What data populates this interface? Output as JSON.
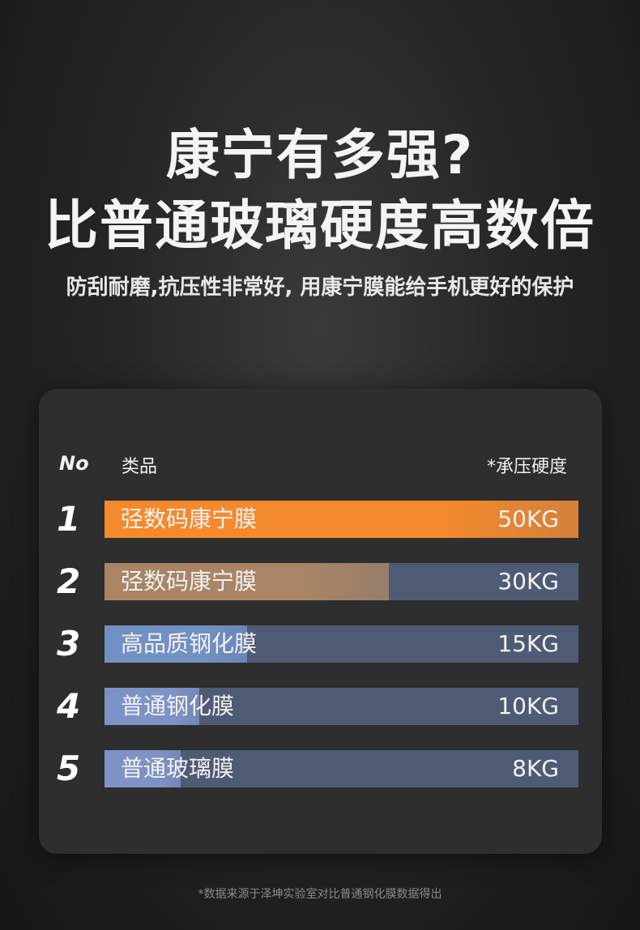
{
  "headline": {
    "line1": "康宁有多强?",
    "line2": "比普通玻璃硬度高数倍",
    "subtitle": "防刮耐磨,抗压性非常好, 用康宁膜能给手机更好的保护"
  },
  "chart_data": {
    "type": "bar",
    "orientation": "horizontal",
    "headers": {
      "no": "No",
      "category": "类品",
      "value": "*承压硬度"
    },
    "categories": [
      "弪数码康宁膜",
      "弪数码康宁膜",
      "高品质钢化膜",
      "普通钢化膜",
      "普通玻璃膜"
    ],
    "ranks": [
      "1",
      "2",
      "3",
      "4",
      "5"
    ],
    "values": [
      50,
      30,
      15,
      10,
      8
    ],
    "value_labels": [
      "50KG",
      "30KG",
      "15KG",
      "10KG",
      "8KG"
    ],
    "unit": "KG",
    "bar_colors": [
      "#f58a2c",
      "#a98566",
      "#7190c4",
      "#7d93c8",
      "#7f92c6"
    ]
  },
  "footnote": "*数据来源于泽坤实验室对比普通钢化膜数据得出"
}
